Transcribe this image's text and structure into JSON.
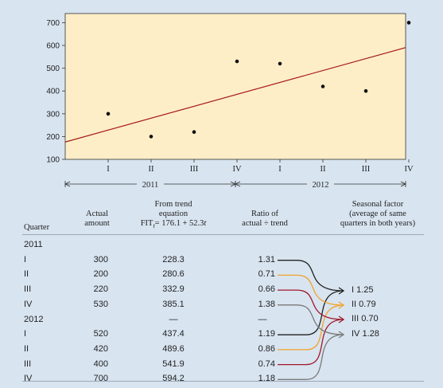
{
  "chart_data": {
    "type": "scatter",
    "x_categories": [
      "I",
      "II",
      "III",
      "IV",
      "I",
      "II",
      "III",
      "IV"
    ],
    "year_labels": [
      "2011",
      "2012"
    ],
    "yticks": [
      100,
      200,
      300,
      400,
      500,
      600,
      700
    ],
    "ylim": [
      100,
      740
    ],
    "points": [
      300,
      200,
      220,
      530,
      520,
      420,
      400,
      700
    ],
    "trend": {
      "intercept": 176.1,
      "slope": 52.3,
      "color": "#a81818"
    },
    "plot_bg": "#fdeec7",
    "grid": false
  },
  "table": {
    "headers": {
      "quarter": "Quarter",
      "actual": [
        "Actual",
        "amount"
      ],
      "trend": [
        "From trend",
        "equation",
        "FIT"
      ],
      "trend_eq_tail": "= 176.1 + 52.3",
      "trend_sub": "t",
      "trend_var": "t",
      "ratio": [
        "Ratio of",
        "actual ÷ trend"
      ],
      "seasonal": [
        "Seasonal factor",
        "(average of same",
        "quarters in both years)"
      ]
    },
    "groups": [
      {
        "year": "2011",
        "rows": [
          {
            "q": "I",
            "actual": "300",
            "trend": "228.3",
            "ratio": "1.31"
          },
          {
            "q": "II",
            "actual": "200",
            "trend": "280.6",
            "ratio": "0.71"
          },
          {
            "q": "III",
            "actual": "220",
            "trend": "332.9",
            "ratio": "0.66"
          },
          {
            "q": "IV",
            "actual": "530",
            "trend": "385.1",
            "ratio": "1.38"
          }
        ]
      },
      {
        "year": "2012",
        "year_trend": "—",
        "year_ratio": "—",
        "rows": [
          {
            "q": "I",
            "actual": "520",
            "trend": "437.4",
            "ratio": "1.19"
          },
          {
            "q": "II",
            "actual": "420",
            "trend": "489.6",
            "ratio": "0.86"
          },
          {
            "q": "III",
            "actual": "400",
            "trend": "541.9",
            "ratio": "0.74"
          },
          {
            "q": "IV",
            "actual": "700",
            "trend": "594.2",
            "ratio": "1.18"
          }
        ]
      }
    ],
    "seasonal_factors": [
      {
        "label": "I 1.25",
        "color": "#222222"
      },
      {
        "label": "II 0.79",
        "color": "#f2a22a"
      },
      {
        "label": "III 0.70",
        "color": "#a0182a"
      },
      {
        "label": "IV 1.28",
        "color": "#7a7a7a"
      }
    ]
  }
}
